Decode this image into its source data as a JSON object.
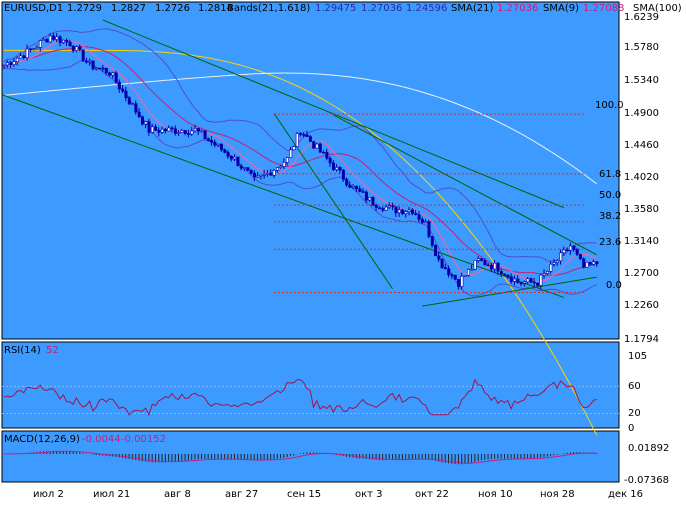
{
  "header": {
    "symbol": "EURUSD,D1",
    "ohlc": [
      "1.2729",
      "1.2827",
      "1.2726",
      "1.2814"
    ],
    "bands_label": "Bands(21,1.618)",
    "bands_values": [
      "1.29475",
      "1.27036",
      "1.24596"
    ],
    "sma21_label": "SMA(21)",
    "sma21_value": "1.27036",
    "sma9_label": "SMA(9)",
    "sma9_value": "1.27088",
    "sma100_label": "SMA(100)"
  },
  "price_axis": [
    "1.6239",
    "1.5780",
    "1.5340",
    "1.4900",
    "1.4460",
    "1.4020",
    "1.3580",
    "1.3140",
    "1.2700",
    "1.2260",
    "1.1794"
  ],
  "fib_levels": [
    {
      "label": "100.0",
      "price": 1.487
    },
    {
      "label": "61.8",
      "price": 1.4045
    },
    {
      "label": "50.0",
      "price": 1.3615
    },
    {
      "label": "38.2",
      "price": 1.3385
    },
    {
      "label": "23.6",
      "price": 1.3005
    },
    {
      "label": "0.0",
      "price": 1.2408
    }
  ],
  "rsi": {
    "label": "RSI(14)",
    "value": "52",
    "axis": [
      "105",
      "60",
      "20",
      "0"
    ]
  },
  "macd": {
    "label": "MACD(12,26,9)",
    "values": [
      "-0.0044",
      "-0.00152"
    ],
    "axis": [
      "0.01892",
      "-0.07368"
    ]
  },
  "time_axis": [
    "июл 2",
    "июл 21",
    "авг 8",
    "авг 27",
    "сен 15",
    "окт 3",
    "окт 22",
    "ноя 10",
    "ноя 28",
    "дек 16"
  ],
  "colors": {
    "background": "#ffffff",
    "plot_bg": "#3d9bff",
    "candle": "#0000aa",
    "bands": "#5050c8",
    "sma21": "#c81e78",
    "sma9": "#ff60a0",
    "sma100": "#ffd200",
    "sma200": "#f0f0f0",
    "channel": "#006400",
    "fib": "#c83232",
    "rsi": "#a0144a",
    "macd_signal": "#c81e78",
    "macd_hist": "#202020"
  },
  "chart_data": {
    "type": "candlestick",
    "symbol": "EURUSD,D1",
    "x_labels": [
      "июл 2",
      "июл 21",
      "авг 8",
      "авг 27",
      "сен 15",
      "окт 3",
      "окт 22",
      "ноя 10",
      "ноя 28",
      "дек 16"
    ],
    "price_axis_range": [
      1.1794,
      1.6239
    ],
    "close_path": [
      [
        0,
        1.555
      ],
      [
        8,
        1.575
      ],
      [
        14,
        1.595
      ],
      [
        20,
        1.585
      ],
      [
        26,
        1.555
      ],
      [
        32,
        1.545
      ],
      [
        38,
        1.505
      ],
      [
        44,
        1.465
      ],
      [
        50,
        1.465
      ],
      [
        58,
        1.465
      ],
      [
        64,
        1.445
      ],
      [
        70,
        1.425
      ],
      [
        76,
        1.395
      ],
      [
        80,
        1.405
      ],
      [
        86,
        1.425
      ],
      [
        90,
        1.465
      ],
      [
        94,
        1.445
      ],
      [
        100,
        1.415
      ],
      [
        106,
        1.385
      ],
      [
        112,
        1.365
      ],
      [
        118,
        1.355
      ],
      [
        124,
        1.355
      ],
      [
        128,
        1.335
      ],
      [
        132,
        1.285
      ],
      [
        138,
        1.255
      ],
      [
        144,
        1.285
      ],
      [
        150,
        1.275
      ],
      [
        156,
        1.255
      ],
      [
        162,
        1.255
      ],
      [
        168,
        1.285
      ],
      [
        172,
        1.305
      ],
      [
        176,
        1.275
      ],
      [
        180,
        1.281
      ]
    ],
    "indicators": {
      "bollinger": {
        "period": 21,
        "deviation": 1.618,
        "upper": 1.29475,
        "middle": 1.27036,
        "lower": 1.24596
      },
      "sma21": 1.27036,
      "sma9": 1.27088
    },
    "fibonacci": {
      "levels": [
        "100.0",
        "61.8",
        "50.0",
        "38.2",
        "23.6",
        "0.0"
      ]
    },
    "rsi_axis": [
      "105",
      "60",
      "20",
      "0"
    ],
    "macd_axis": [
      "0.01892",
      "-0.07368"
    ]
  }
}
